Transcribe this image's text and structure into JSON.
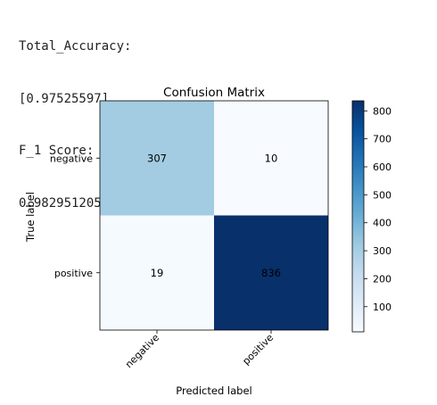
{
  "output": {
    "accuracy_label": "Total_Accuracy:",
    "accuracy_value": "[0.97525597]",
    "f1_label": "F_1 Score:",
    "f1_value": "0.9829512051734274"
  },
  "chart_data": {
    "type": "heatmap",
    "title": "Confusion Matrix",
    "xlabel": "Predicted label",
    "ylabel": "True label",
    "x_categories": [
      "negative",
      "positive"
    ],
    "y_categories": [
      "negative",
      "positive"
    ],
    "values": [
      [
        307,
        10
      ],
      [
        19,
        836
      ]
    ],
    "colormap": "Blues",
    "colorbar": {
      "min": 10,
      "max": 836,
      "ticks": [
        100,
        200,
        300,
        400,
        500,
        600,
        700,
        800
      ]
    },
    "colors": {
      "low": "#f7fbff",
      "high": "#08306b",
      "light_text": "#ffffff",
      "dark_text": "#000000"
    }
  }
}
